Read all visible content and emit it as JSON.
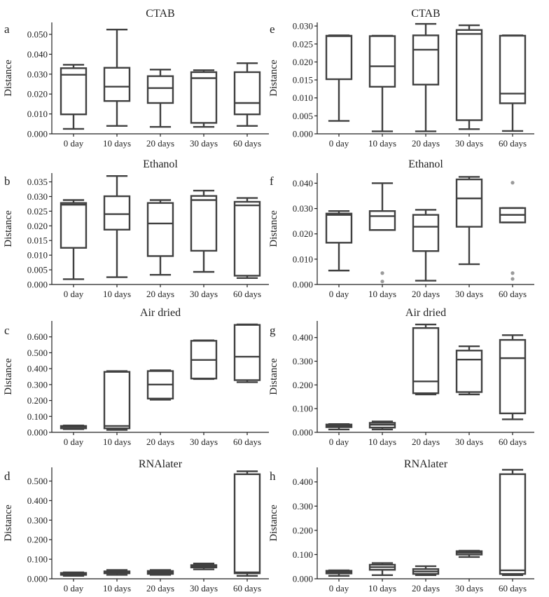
{
  "chart_data": [
    {
      "panel": "a",
      "type": "box",
      "title": "CTAB",
      "ylabel": "Distance",
      "categories": [
        "0 day",
        "10 days",
        "20 days",
        "30 days",
        "60 days"
      ],
      "ylim": [
        0,
        0.056
      ],
      "yticks": [
        0.0,
        0.01,
        0.02,
        0.03,
        0.04,
        0.05
      ],
      "ytick_labels": [
        "0.000",
        "0.010",
        "0.020",
        "0.030",
        "0.040",
        "0.050"
      ],
      "boxes": [
        {
          "min": 0.0025,
          "q1": 0.0098,
          "median": 0.0297,
          "q3": 0.033,
          "max": 0.0347
        },
        {
          "min": 0.004,
          "q1": 0.0165,
          "median": 0.0237,
          "q3": 0.0332,
          "max": 0.0524
        },
        {
          "min": 0.0035,
          "q1": 0.0155,
          "median": 0.023,
          "q3": 0.029,
          "max": 0.0323
        },
        {
          "min": 0.0035,
          "q1": 0.0055,
          "median": 0.028,
          "q3": 0.031,
          "max": 0.032
        },
        {
          "min": 0.004,
          "q1": 0.0098,
          "median": 0.0155,
          "q3": 0.031,
          "max": 0.0355
        }
      ]
    },
    {
      "panel": "b",
      "type": "box",
      "title": "Ethanol",
      "ylabel": "Distance",
      "categories": [
        "0 day",
        "10 days",
        "20 days",
        "30 days",
        "60 days"
      ],
      "ylim": [
        0,
        0.038
      ],
      "yticks": [
        0.0,
        0.005,
        0.01,
        0.015,
        0.02,
        0.025,
        0.03,
        0.035
      ],
      "ytick_labels": [
        "0.000",
        "0.005",
        "0.010",
        "0.015",
        "0.020",
        "0.025",
        "0.030",
        "0.035"
      ],
      "boxes": [
        {
          "min": 0.0018,
          "q1": 0.0125,
          "median": 0.0272,
          "q3": 0.0278,
          "max": 0.0288
        },
        {
          "min": 0.0025,
          "q1": 0.0187,
          "median": 0.024,
          "q3": 0.0301,
          "max": 0.037
        },
        {
          "min": 0.0033,
          "q1": 0.0097,
          "median": 0.0208,
          "q3": 0.0278,
          "max": 0.0288
        },
        {
          "min": 0.0043,
          "q1": 0.0115,
          "median": 0.0288,
          "q3": 0.0302,
          "max": 0.032
        },
        {
          "min": 0.0022,
          "q1": 0.003,
          "median": 0.027,
          "q3": 0.0282,
          "max": 0.0295
        }
      ]
    },
    {
      "panel": "c",
      "type": "box",
      "title": "Air dried",
      "ylabel": "Distance",
      "categories": [
        "0 day",
        "10 days",
        "20 days",
        "30 days",
        "60 days"
      ],
      "ylim": [
        0,
        0.7
      ],
      "yticks": [
        0.0,
        0.1,
        0.2,
        0.3,
        0.4,
        0.5,
        0.6
      ],
      "ytick_labels": [
        "0.000",
        "0.100",
        "0.200",
        "0.300",
        "0.400",
        "0.500",
        "0.600"
      ],
      "boxes": [
        {
          "min": 0.02,
          "q1": 0.025,
          "median": 0.035,
          "q3": 0.04,
          "max": 0.043
        },
        {
          "min": 0.015,
          "q1": 0.025,
          "median": 0.04,
          "q3": 0.38,
          "max": 0.385
        },
        {
          "min": 0.205,
          "q1": 0.212,
          "median": 0.3,
          "q3": 0.385,
          "max": 0.39
        },
        {
          "min": 0.335,
          "q1": 0.338,
          "median": 0.455,
          "q3": 0.575,
          "max": 0.578
        },
        {
          "min": 0.315,
          "q1": 0.328,
          "median": 0.475,
          "q3": 0.675,
          "max": 0.678
        }
      ]
    },
    {
      "panel": "d",
      "type": "box",
      "title": "RNAlater",
      "ylabel": "Distance",
      "categories": [
        "0 day",
        "10 days",
        "20 days",
        "30 days",
        "60 days"
      ],
      "ylim": [
        0,
        0.57
      ],
      "yticks": [
        0.0,
        0.1,
        0.2,
        0.3,
        0.4,
        0.5
      ],
      "ytick_labels": [
        "0.000",
        "0.100",
        "0.200",
        "0.300",
        "0.400",
        "0.500"
      ],
      "boxes": [
        {
          "min": 0.015,
          "q1": 0.02,
          "median": 0.025,
          "q3": 0.03,
          "max": 0.033
        },
        {
          "min": 0.02,
          "q1": 0.028,
          "median": 0.033,
          "q3": 0.038,
          "max": 0.045
        },
        {
          "min": 0.02,
          "q1": 0.025,
          "median": 0.033,
          "q3": 0.04,
          "max": 0.045
        },
        {
          "min": 0.048,
          "q1": 0.058,
          "median": 0.065,
          "q3": 0.07,
          "max": 0.078
        },
        {
          "min": 0.015,
          "q1": 0.028,
          "median": 0.033,
          "q3": 0.535,
          "max": 0.55
        }
      ]
    },
    {
      "panel": "e",
      "type": "box",
      "title": "CTAB",
      "ylabel": "Distance",
      "categories": [
        "0 day",
        "10 days",
        "20 days",
        "30 days",
        "60 days"
      ],
      "ylim": [
        0,
        0.031
      ],
      "yticks": [
        0.0,
        0.005,
        0.01,
        0.015,
        0.02,
        0.025,
        0.03
      ],
      "ytick_labels": [
        "0.000",
        "0.005",
        "0.010",
        "0.015",
        "0.020",
        "0.025",
        "0.030"
      ],
      "boxes": [
        {
          "min": 0.0036,
          "q1": 0.0152,
          "median": 0.0272,
          "q3": 0.0273,
          "max": 0.0274
        },
        {
          "min": 0.0007,
          "q1": 0.0131,
          "median": 0.0188,
          "q3": 0.0272,
          "max": 0.0273
        },
        {
          "min": 0.0007,
          "q1": 0.0137,
          "median": 0.0234,
          "q3": 0.0274,
          "max": 0.0306
        },
        {
          "min": 0.0013,
          "q1": 0.0038,
          "median": 0.0278,
          "q3": 0.0289,
          "max": 0.0302
        },
        {
          "min": 0.0008,
          "q1": 0.0085,
          "median": 0.0112,
          "q3": 0.0273,
          "max": 0.0274
        }
      ]
    },
    {
      "panel": "f",
      "type": "box",
      "title": "Ethanol",
      "ylabel": "Distance",
      "categories": [
        "0 day",
        "10 days",
        "20 days",
        "30 days",
        "60 days"
      ],
      "ylim": [
        0,
        0.044
      ],
      "yticks": [
        0.0,
        0.01,
        0.02,
        0.03,
        0.04
      ],
      "ytick_labels": [
        "0.000",
        "0.010",
        "0.020",
        "0.030",
        "0.040"
      ],
      "boxes": [
        {
          "min": 0.0055,
          "q1": 0.0165,
          "median": 0.0275,
          "q3": 0.028,
          "max": 0.029,
          "outliers": []
        },
        {
          "min": 0.0215,
          "q1": 0.0215,
          "median": 0.027,
          "q3": 0.029,
          "max": 0.04,
          "outliers": [
            0.0045,
            0.0012
          ]
        },
        {
          "min": 0.0015,
          "q1": 0.0132,
          "median": 0.0228,
          "q3": 0.0275,
          "max": 0.0295,
          "outliers": []
        },
        {
          "min": 0.008,
          "q1": 0.0228,
          "median": 0.034,
          "q3": 0.0415,
          "max": 0.0425,
          "outliers": []
        },
        {
          "min": 0.0245,
          "q1": 0.0245,
          "median": 0.0275,
          "q3": 0.0302,
          "max": 0.0302,
          "outliers": [
            0.0402,
            0.0045,
            0.0022
          ]
        }
      ]
    },
    {
      "panel": "g",
      "type": "box",
      "title": "Air dried",
      "ylabel": "Distance",
      "categories": [
        "0 day",
        "10 days",
        "20 days",
        "30 days",
        "60 days"
      ],
      "ylim": [
        0,
        0.47
      ],
      "yticks": [
        0.0,
        0.1,
        0.2,
        0.3,
        0.4
      ],
      "ytick_labels": [
        "0.000",
        "0.100",
        "0.200",
        "0.300",
        "0.400"
      ],
      "boxes": [
        {
          "min": 0.012,
          "q1": 0.022,
          "median": 0.028,
          "q3": 0.033,
          "max": 0.035
        },
        {
          "min": 0.012,
          "q1": 0.02,
          "median": 0.032,
          "q3": 0.04,
          "max": 0.046
        },
        {
          "min": 0.16,
          "q1": 0.165,
          "median": 0.215,
          "q3": 0.44,
          "max": 0.455
        },
        {
          "min": 0.16,
          "q1": 0.17,
          "median": 0.307,
          "q3": 0.345,
          "max": 0.363
        },
        {
          "min": 0.055,
          "q1": 0.08,
          "median": 0.313,
          "q3": 0.39,
          "max": 0.41
        }
      ]
    },
    {
      "panel": "h",
      "type": "box",
      "title": "RNAlater",
      "ylabel": "Distance",
      "categories": [
        "0 day",
        "10 days",
        "20 days",
        "30 days",
        "60 days"
      ],
      "ylim": [
        0,
        0.46
      ],
      "yticks": [
        0.0,
        0.1,
        0.2,
        0.3,
        0.4
      ],
      "ytick_labels": [
        "0.000",
        "0.100",
        "0.200",
        "0.300",
        "0.400"
      ],
      "boxes": [
        {
          "min": 0.012,
          "q1": 0.022,
          "median": 0.028,
          "q3": 0.033,
          "max": 0.035
        },
        {
          "min": 0.015,
          "q1": 0.037,
          "median": 0.048,
          "q3": 0.058,
          "max": 0.065
        },
        {
          "min": 0.015,
          "q1": 0.02,
          "median": 0.03,
          "q3": 0.04,
          "max": 0.052
        },
        {
          "min": 0.09,
          "q1": 0.1,
          "median": 0.108,
          "q3": 0.114,
          "max": 0.116
        },
        {
          "min": 0.015,
          "q1": 0.02,
          "median": 0.035,
          "q3": 0.432,
          "max": 0.45
        }
      ]
    }
  ]
}
